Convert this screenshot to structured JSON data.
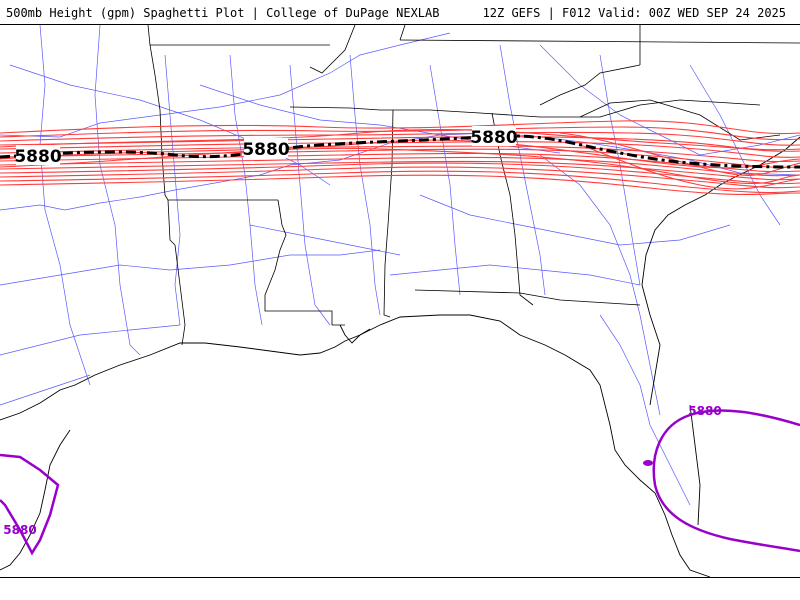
{
  "header": {
    "title_left": "500mb Height (gpm) Spaghetti Plot | College of DuPage NEXLAB",
    "title_right": "12Z GEFS | F012 Valid: 00Z WED SEP 24 2025"
  },
  "map": {
    "variable": "500mb Height",
    "units": "gpm",
    "contour_value": "5880",
    "colors": {
      "ensemble_members": "#ff3b3b",
      "mean_contour": "#000000",
      "other_contour": "#9900cc",
      "roads": "#5a5aff",
      "boundaries": "#000000"
    },
    "labels": {
      "mean_west": "5880",
      "mean_central": "5880",
      "mean_east": "5880",
      "florida_contour": "5880",
      "texas_contour": "5880"
    }
  }
}
